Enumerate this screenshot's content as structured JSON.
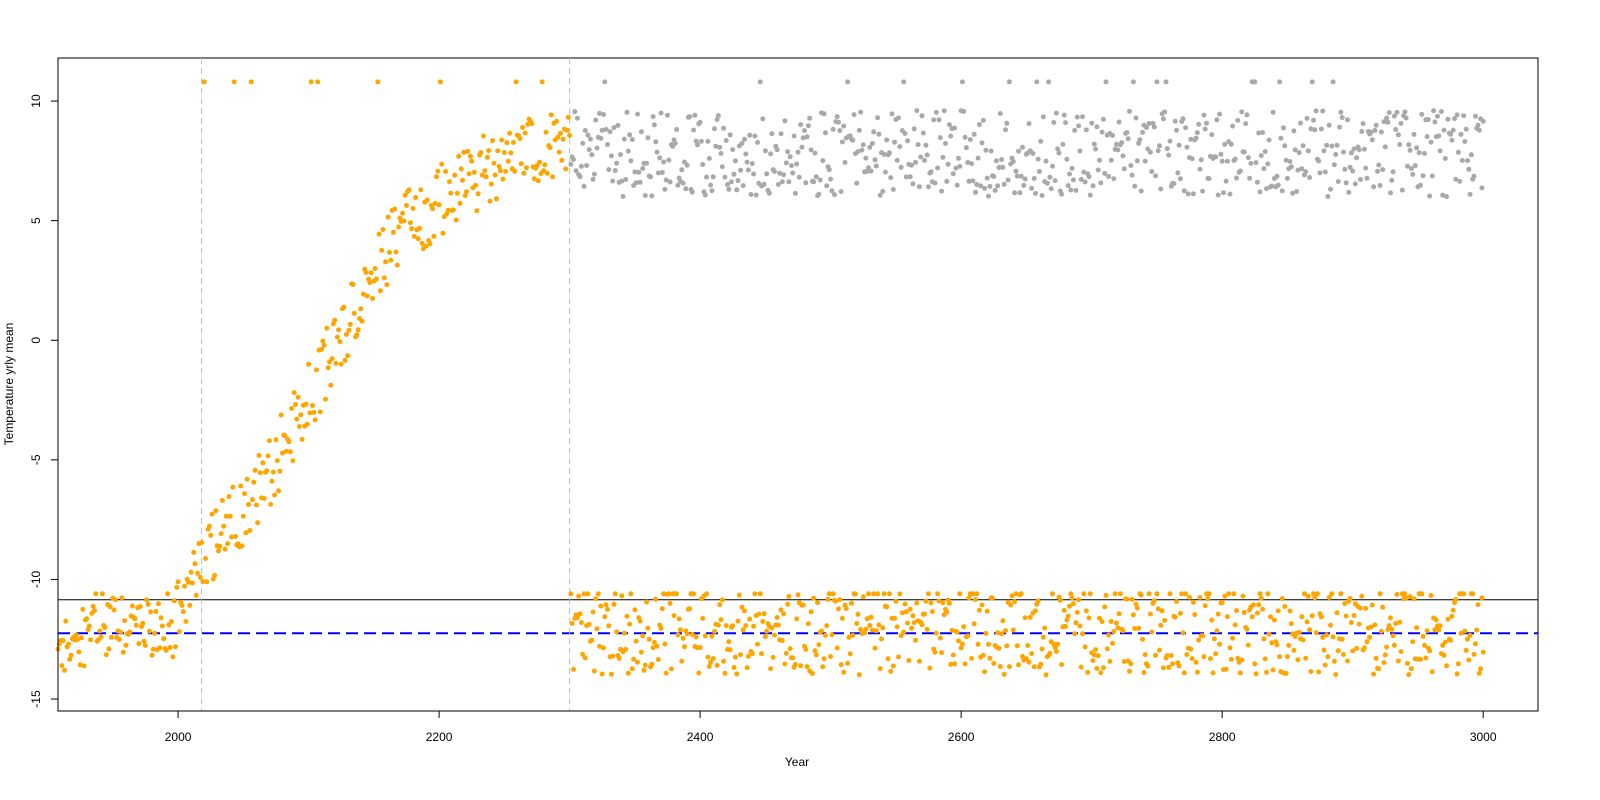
{
  "chart_data": {
    "type": "scatter",
    "title": "",
    "xlabel": "Year",
    "ylabel": "Temperature yrly mean",
    "xlim": [
      1908,
      3042
    ],
    "ylim": [
      -15.5,
      11.8
    ],
    "x_ticks": [
      2000,
      2200,
      2400,
      2600,
      2800,
      3000
    ],
    "x_tick_labels": [
      "2000",
      "2200",
      "2400",
      "2600",
      "2800",
      "3000"
    ],
    "y_ticks": [
      -15,
      -10,
      -5,
      0,
      5,
      10
    ],
    "y_tick_labels": [
      "-15",
      "-10",
      "-5",
      "0",
      "5",
      "10"
    ],
    "grid": false,
    "legend": "none",
    "reference_lines": [
      {
        "orientation": "horizontal",
        "y": -10.85,
        "style": "solid",
        "color": "#000000"
      },
      {
        "orientation": "horizontal",
        "y": -12.25,
        "style": "dashed",
        "color": "#0000ff"
      },
      {
        "orientation": "vertical",
        "x": 2018,
        "style": "dashed",
        "color": "#bebebe"
      },
      {
        "orientation": "vertical",
        "x": 2300,
        "style": "dashed",
        "color": "#bebebe"
      }
    ],
    "series": [
      {
        "color": "#ffa500",
        "segments": [
          {
            "x_start": 1908,
            "x_end": 1996,
            "trend": [
              [
                1908,
                -13.0
              ],
              [
                1950,
                -12.0
              ],
              [
                1996,
                -12.0
              ]
            ],
            "spread": 2.6,
            "cap": -10.6
          },
          {
            "x_start": 1997,
            "x_end": 2300,
            "trend": [
              [
                1997,
                -11.8
              ],
              [
                2020,
                -9.0
              ],
              [
                2060,
                -6.5
              ],
              [
                2100,
                -2.5
              ],
              [
                2140,
                1.8
              ],
              [
                2170,
                4.6
              ],
              [
                2200,
                5.8
              ],
              [
                2240,
                7.3
              ],
              [
                2270,
                7.9
              ],
              [
                2300,
                8.0
              ]
            ],
            "spread": 3.0,
            "cap": 10.8
          },
          {
            "x_start": 2301,
            "x_end": 3000,
            "trend": [
              [
                2301,
                -12.2
              ],
              [
                3000,
                -12.2
              ]
            ],
            "spread": 3.6,
            "cap": -10.6
          }
        ]
      },
      {
        "color": "#a9a9a9",
        "segments": [
          {
            "x_start": 2301,
            "x_end": 3000,
            "trend": [
              [
                2301,
                7.8
              ],
              [
                3000,
                7.8
              ]
            ],
            "spread": 3.6,
            "cap": 10.8
          }
        ]
      }
    ]
  }
}
